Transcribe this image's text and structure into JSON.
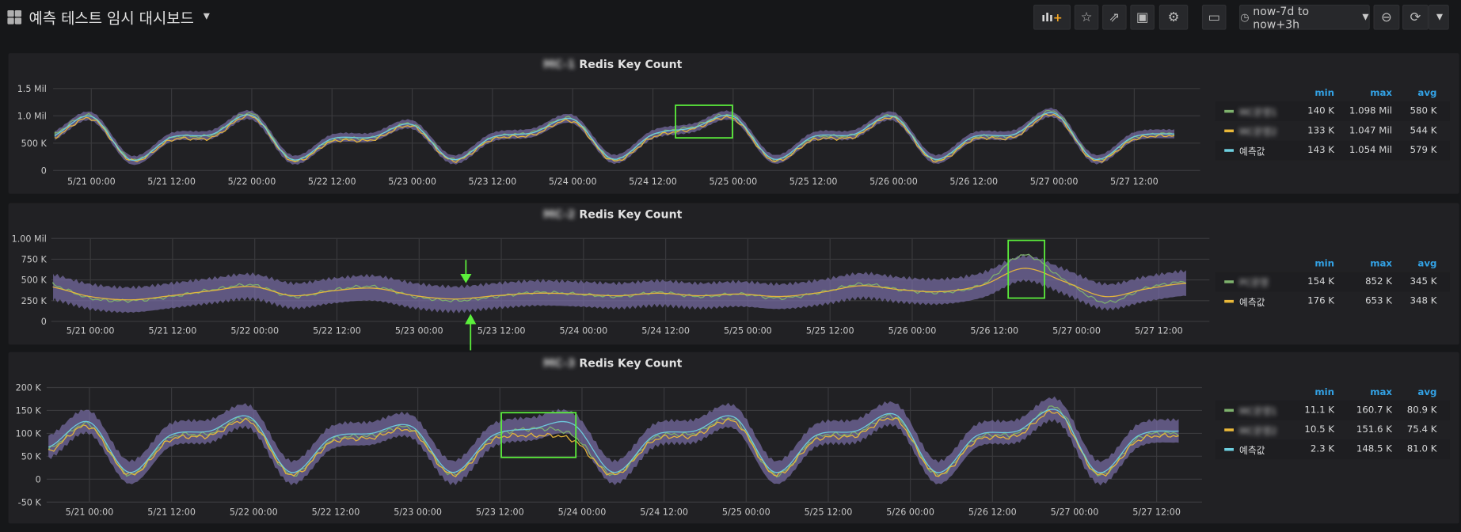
{
  "header": {
    "title": "예측 테스트 임시 대시보드",
    "time_range": "now-7d to now+3h",
    "buttons": [
      "add-panel",
      "star",
      "share",
      "save",
      "settings",
      "tv-mode",
      "time-range",
      "zoom-out",
      "refresh",
      "refresh-interval"
    ]
  },
  "colors": {
    "green": "#7eb26d",
    "yellow": "#eab839",
    "blue": "#6ed0e0",
    "band": "#7a6fa8",
    "legend_header": "#33a2e5",
    "annotation": "#5cf03c"
  },
  "panels": [
    {
      "title_blurred": "MC-1",
      "title": "Redis Key Count",
      "legend_headers": [
        "min",
        "max",
        "avg"
      ],
      "legend": [
        {
          "name": "MC운영1",
          "blurred": true,
          "color": "#7eb26d",
          "min": "140 K",
          "max": "1.098 Mil",
          "avg": "580 K"
        },
        {
          "name": "MC운영2",
          "blurred": true,
          "color": "#eab839",
          "min": "133 K",
          "max": "1.047 Mil",
          "avg": "544 K"
        },
        {
          "name": "예측값",
          "blurred": false,
          "color": "#6ed0e0",
          "min": "143 K",
          "max": "1.054 Mil",
          "avg": "579 K"
        }
      ]
    },
    {
      "title_blurred": "MC-2",
      "title": "Redis Key Count",
      "legend_headers": [
        "min",
        "max",
        "avg"
      ],
      "legend": [
        {
          "name": "PC운영",
          "blurred": true,
          "color": "#7eb26d",
          "min": "154 K",
          "max": "852 K",
          "avg": "345 K"
        },
        {
          "name": "예측값",
          "blurred": false,
          "color": "#eab839",
          "min": "176 K",
          "max": "653 K",
          "avg": "348 K"
        }
      ]
    },
    {
      "title_blurred": "MC-3",
      "title": "Redis Key Count",
      "legend_headers": [
        "min",
        "max",
        "avg"
      ],
      "legend": [
        {
          "name": "MC운영1",
          "blurred": true,
          "color": "#7eb26d",
          "min": "11.1 K",
          "max": "160.7 K",
          "avg": "80.9 K"
        },
        {
          "name": "MC운영2",
          "blurred": true,
          "color": "#eab839",
          "min": "10.5 K",
          "max": "151.6 K",
          "avg": "75.4 K"
        },
        {
          "name": "예측값",
          "blurred": false,
          "color": "#6ed0e0",
          "min": "2.3 K",
          "max": "148.5 K",
          "avg": "81.0 K"
        }
      ]
    }
  ],
  "chart_data": [
    {
      "type": "line",
      "title": "Redis Key Count",
      "x_start": "5/20 18:00",
      "x_step_hours": 6,
      "xticks": [
        "5/21 00:00",
        "5/21 12:00",
        "5/22 00:00",
        "5/22 12:00",
        "5/23 00:00",
        "5/23 12:00",
        "5/24 00:00",
        "5/24 12:00",
        "5/25 00:00",
        "5/25 12:00",
        "5/26 00:00",
        "5/26 12:00",
        "5/27 00:00",
        "5/27 12:00"
      ],
      "yticks": [
        {
          "v": 1500000,
          "label": "1.5 Mil"
        },
        {
          "v": 1000000,
          "label": "1.0 Mil"
        },
        {
          "v": 500000,
          "label": "500 K"
        },
        {
          "v": 0,
          "label": "0"
        }
      ],
      "ylim": [
        0,
        1500000
      ],
      "band_width": 80000,
      "series": [
        {
          "name": "MC운영1",
          "color": "#7eb26d",
          "values": [
            650,
            1000,
            200,
            600,
            650,
            1040,
            200,
            560,
            600,
            850,
            200,
            600,
            700,
            950,
            200,
            650,
            800,
            1000,
            200,
            600,
            650,
            1000,
            200,
            600,
            650,
            1080,
            200,
            600,
            680
          ]
        },
        {
          "name": "MC운영2",
          "color": "#eab839",
          "values": [
            580,
            950,
            180,
            560,
            600,
            990,
            180,
            530,
            560,
            810,
            180,
            570,
            650,
            900,
            180,
            610,
            760,
            950,
            180,
            560,
            610,
            960,
            180,
            570,
            610,
            1020,
            180,
            570,
            640
          ]
        },
        {
          "name": "예측값",
          "color": "#6ed0e0",
          "values": [
            620,
            990,
            190,
            610,
            660,
            1010,
            200,
            580,
            610,
            840,
            200,
            610,
            690,
            940,
            210,
            660,
            780,
            990,
            210,
            620,
            660,
            990,
            210,
            620,
            660,
            1050,
            210,
            620,
            670
          ],
          "band": true
        }
      ],
      "unit_multiplier": 1000
    },
    {
      "type": "line",
      "title": "Redis Key Count",
      "x_start": "5/20 18:00",
      "x_step_hours": 6,
      "xticks": [
        "5/21 00:00",
        "5/21 12:00",
        "5/22 00:00",
        "5/22 12:00",
        "5/23 00:00",
        "5/23 12:00",
        "5/24 00:00",
        "5/24 12:00",
        "5/25 00:00",
        "5/25 12:00",
        "5/26 00:00",
        "5/26 12:00",
        "5/27 00:00",
        "5/27 12:00"
      ],
      "yticks": [
        {
          "v": 1000000,
          "label": "1.00 Mil"
        },
        {
          "v": 750000,
          "label": "750 K"
        },
        {
          "v": 500000,
          "label": "500 K"
        },
        {
          "v": 250000,
          "label": "250 K"
        },
        {
          "v": 0,
          "label": "0"
        }
      ],
      "ylim": [
        0,
        1000000
      ],
      "band_width": 150000,
      "series": [
        {
          "name": "PC운영",
          "color": "#7eb26d",
          "values": [
            450,
            280,
            250,
            300,
            380,
            440,
            300,
            380,
            420,
            300,
            250,
            300,
            350,
            330,
            300,
            350,
            300,
            330,
            280,
            350,
            450,
            380,
            350,
            450,
            800,
            500,
            230,
            400,
            480
          ]
        },
        {
          "name": "예측값",
          "color": "#eab839",
          "values": [
            420,
            300,
            260,
            310,
            370,
            420,
            310,
            370,
            400,
            310,
            270,
            310,
            340,
            330,
            310,
            340,
            310,
            330,
            300,
            350,
            430,
            380,
            360,
            440,
            640,
            480,
            300,
            390,
            460
          ],
          "band": true
        }
      ],
      "unit_multiplier": 1000
    },
    {
      "type": "line",
      "title": "Redis Key Count",
      "x_start": "5/20 18:00",
      "x_step_hours": 6,
      "xticks": [
        "5/21 00:00",
        "5/21 12:00",
        "5/22 00:00",
        "5/22 12:00",
        "5/23 00:00",
        "5/23 12:00",
        "5/24 00:00",
        "5/24 12:00",
        "5/25 00:00",
        "5/25 12:00",
        "5/26 00:00",
        "5/26 12:00",
        "5/27 00:00",
        "5/27 12:00"
      ],
      "yticks": [
        {
          "v": 200000,
          "label": "200 K"
        },
        {
          "v": 150000,
          "label": "150 K"
        },
        {
          "v": 100000,
          "label": "100 K"
        },
        {
          "v": 50000,
          "label": "50 K"
        },
        {
          "v": 0,
          "label": "0"
        },
        {
          "v": -50000,
          "label": "-50 K"
        }
      ],
      "ylim": [
        -50000,
        200000
      ],
      "band_width": 25000,
      "series": [
        {
          "name": "MC운영1",
          "color": "#7eb26d",
          "values": [
            65,
            120,
            10,
            90,
            100,
            130,
            10,
            85,
            95,
            110,
            10,
            90,
            110,
            95,
            10,
            90,
            100,
            130,
            10,
            90,
            100,
            135,
            10,
            90,
            100,
            155,
            10,
            90,
            100
          ]
        },
        {
          "name": "MC운영2",
          "color": "#eab839",
          "values": [
            60,
            115,
            10,
            85,
            95,
            125,
            10,
            80,
            90,
            105,
            10,
            85,
            95,
            85,
            10,
            85,
            95,
            125,
            10,
            85,
            95,
            130,
            10,
            85,
            95,
            145,
            10,
            85,
            95
          ]
        },
        {
          "name": "예측값",
          "color": "#6ed0e0",
          "values": [
            70,
            125,
            15,
            95,
            105,
            135,
            15,
            90,
            100,
            115,
            15,
            95,
            110,
            120,
            15,
            95,
            105,
            135,
            15,
            95,
            105,
            140,
            15,
            95,
            105,
            150,
            15,
            95,
            105
          ],
          "band": true
        }
      ],
      "unit_multiplier": 1000
    }
  ]
}
